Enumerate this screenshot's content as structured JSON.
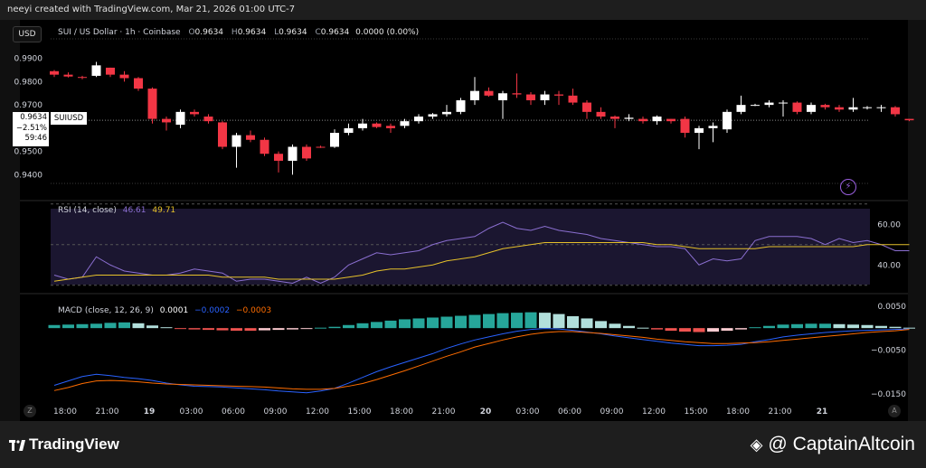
{
  "header": {
    "attribution": "neeyi created with TradingView.com, Mar 21, 2026 01:00 UTC-7",
    "currency": "USD",
    "title": "SUI / US Dollar · 1h · Coinbase",
    "ohlc": {
      "o_label": "O",
      "o": "0.9634",
      "h_label": "H",
      "h": "0.9634",
      "l_label": "L",
      "l": "0.9634",
      "c_label": "C",
      "c": "0.9634",
      "chg": "0.0000 (0.00%)"
    }
  },
  "price_label": {
    "price": "0.9634",
    "change": "−2.51%",
    "countdown": "59:46",
    "symbol": "SUIUSD"
  },
  "rsi_legend": {
    "name": "RSI (14, close)",
    "rsi": "46.61",
    "ma": "49.71"
  },
  "macd_legend": {
    "name": "MACD (close, 12, 26, 9)",
    "hist": "0.0001",
    "macd": "−0.0002",
    "signal": "−0.0003"
  },
  "corner": {
    "left": "Z",
    "right": "A"
  },
  "footer": {
    "tradingview": "TradingView",
    "captain": "CaptainAltcoin"
  },
  "colors": {
    "up": "#ffffff",
    "down": "#f23645",
    "rsi": "#8b6fd1",
    "rsi_ma": "#e6c12a",
    "macd": "#2962ff",
    "signal": "#ff6d00",
    "hist_up": "#26a69a",
    "hist_up_light": "#b2dfdb",
    "hist_down": "#ef5350",
    "hist_down_light": "#ffcdd2"
  },
  "chart_data": [
    {
      "type": "candlestick",
      "title": "SUI / US Dollar · 1h · Coinbase",
      "y_ticks": [
        0.99,
        0.98,
        0.97,
        0.95,
        0.94
      ],
      "y_tick_labels": [
        "0.9900",
        "0.9800",
        "0.9700",
        "0.9500",
        "0.9400"
      ],
      "ylim": [
        0.9355,
        0.998
      ],
      "x_ticks": [
        "18:00",
        "21:00",
        "19",
        "03:00",
        "06:00",
        "09:00",
        "12:00",
        "15:00",
        "18:00",
        "21:00",
        "20",
        "03:00",
        "06:00",
        "09:00",
        "12:00",
        "15:00",
        "18:00",
        "21:00",
        "21"
      ],
      "last_price": 0.9634,
      "candles": [
        {
          "o": 0.9845,
          "h": 0.985,
          "l": 0.982,
          "c": 0.983
        },
        {
          "o": 0.983,
          "h": 0.984,
          "l": 0.9818,
          "c": 0.9822
        },
        {
          "o": 0.982,
          "h": 0.9825,
          "l": 0.981,
          "c": 0.9818
        },
        {
          "o": 0.9825,
          "h": 0.9885,
          "l": 0.982,
          "c": 0.987
        },
        {
          "o": 0.986,
          "h": 0.986,
          "l": 0.982,
          "c": 0.983
        },
        {
          "o": 0.983,
          "h": 0.9845,
          "l": 0.98,
          "c": 0.9815
        },
        {
          "o": 0.9815,
          "h": 0.982,
          "l": 0.976,
          "c": 0.977
        },
        {
          "o": 0.977,
          "h": 0.9775,
          "l": 0.962,
          "c": 0.964
        },
        {
          "o": 0.964,
          "h": 0.965,
          "l": 0.959,
          "c": 0.9625
        },
        {
          "o": 0.9615,
          "h": 0.968,
          "l": 0.96,
          "c": 0.967
        },
        {
          "o": 0.967,
          "h": 0.968,
          "l": 0.965,
          "c": 0.966
        },
        {
          "o": 0.965,
          "h": 0.966,
          "l": 0.962,
          "c": 0.963
        },
        {
          "o": 0.9625,
          "h": 0.963,
          "l": 0.951,
          "c": 0.952
        },
        {
          "o": 0.952,
          "h": 0.958,
          "l": 0.943,
          "c": 0.957
        },
        {
          "o": 0.957,
          "h": 0.959,
          "l": 0.954,
          "c": 0.955
        },
        {
          "o": 0.955,
          "h": 0.956,
          "l": 0.948,
          "c": 0.949
        },
        {
          "o": 0.949,
          "h": 0.95,
          "l": 0.941,
          "c": 0.946
        },
        {
          "o": 0.946,
          "h": 0.953,
          "l": 0.94,
          "c": 0.952
        },
        {
          "o": 0.952,
          "h": 0.953,
          "l": 0.946,
          "c": 0.947
        },
        {
          "o": 0.952,
          "h": 0.9525,
          "l": 0.9515,
          "c": 0.9518
        },
        {
          "o": 0.952,
          "h": 0.9595,
          "l": 0.9515,
          "c": 0.958
        },
        {
          "o": 0.958,
          "h": 0.962,
          "l": 0.957,
          "c": 0.96
        },
        {
          "o": 0.96,
          "h": 0.964,
          "l": 0.959,
          "c": 0.962
        },
        {
          "o": 0.962,
          "h": 0.9625,
          "l": 0.96,
          "c": 0.9605
        },
        {
          "o": 0.961,
          "h": 0.962,
          "l": 0.958,
          "c": 0.96
        },
        {
          "o": 0.961,
          "h": 0.964,
          "l": 0.96,
          "c": 0.963
        },
        {
          "o": 0.963,
          "h": 0.966,
          "l": 0.962,
          "c": 0.965
        },
        {
          "o": 0.965,
          "h": 0.9665,
          "l": 0.964,
          "c": 0.966
        },
        {
          "o": 0.966,
          "h": 0.97,
          "l": 0.965,
          "c": 0.967
        },
        {
          "o": 0.967,
          "h": 0.973,
          "l": 0.966,
          "c": 0.972
        },
        {
          "o": 0.972,
          "h": 0.982,
          "l": 0.97,
          "c": 0.976
        },
        {
          "o": 0.976,
          "h": 0.9775,
          "l": 0.9735,
          "c": 0.974
        },
        {
          "o": 0.972,
          "h": 0.976,
          "l": 0.964,
          "c": 0.975
        },
        {
          "o": 0.975,
          "h": 0.9835,
          "l": 0.973,
          "c": 0.9745
        },
        {
          "o": 0.9745,
          "h": 0.9755,
          "l": 0.97,
          "c": 0.972
        },
        {
          "o": 0.972,
          "h": 0.976,
          "l": 0.97,
          "c": 0.9745
        },
        {
          "o": 0.9745,
          "h": 0.976,
          "l": 0.97,
          "c": 0.974
        },
        {
          "o": 0.974,
          "h": 0.977,
          "l": 0.97,
          "c": 0.971
        },
        {
          "o": 0.971,
          "h": 0.972,
          "l": 0.964,
          "c": 0.967
        },
        {
          "o": 0.967,
          "h": 0.969,
          "l": 0.964,
          "c": 0.965
        },
        {
          "o": 0.965,
          "h": 0.9655,
          "l": 0.96,
          "c": 0.964
        },
        {
          "o": 0.964,
          "h": 0.966,
          "l": 0.963,
          "c": 0.9645
        },
        {
          "o": 0.964,
          "h": 0.965,
          "l": 0.962,
          "c": 0.963
        },
        {
          "o": 0.963,
          "h": 0.9655,
          "l": 0.9615,
          "c": 0.965
        },
        {
          "o": 0.964,
          "h": 0.964,
          "l": 0.962,
          "c": 0.963
        },
        {
          "o": 0.964,
          "h": 0.965,
          "l": 0.956,
          "c": 0.958
        },
        {
          "o": 0.958,
          "h": 0.961,
          "l": 0.951,
          "c": 0.96
        },
        {
          "o": 0.96,
          "h": 0.9625,
          "l": 0.954,
          "c": 0.961
        },
        {
          "o": 0.9595,
          "h": 0.968,
          "l": 0.958,
          "c": 0.967
        },
        {
          "o": 0.967,
          "h": 0.974,
          "l": 0.966,
          "c": 0.97
        },
        {
          "o": 0.97,
          "h": 0.9705,
          "l": 0.9695,
          "c": 0.97
        },
        {
          "o": 0.97,
          "h": 0.972,
          "l": 0.969,
          "c": 0.971
        },
        {
          "o": 0.971,
          "h": 0.972,
          "l": 0.965,
          "c": 0.971
        },
        {
          "o": 0.971,
          "h": 0.9715,
          "l": 0.966,
          "c": 0.967
        },
        {
          "o": 0.967,
          "h": 0.971,
          "l": 0.966,
          "c": 0.97
        },
        {
          "o": 0.97,
          "h": 0.9705,
          "l": 0.968,
          "c": 0.969
        },
        {
          "o": 0.969,
          "h": 0.97,
          "l": 0.967,
          "c": 0.968
        },
        {
          "o": 0.968,
          "h": 0.973,
          "l": 0.967,
          "c": 0.969
        },
        {
          "o": 0.969,
          "h": 0.9695,
          "l": 0.968,
          "c": 0.969
        },
        {
          "o": 0.969,
          "h": 0.97,
          "l": 0.967,
          "c": 0.969
        },
        {
          "o": 0.969,
          "h": 0.9695,
          "l": 0.965,
          "c": 0.966
        },
        {
          "o": 0.964,
          "h": 0.964,
          "l": 0.963,
          "c": 0.9634
        }
      ]
    },
    {
      "type": "line",
      "title": "RSI (14, close)",
      "y_ticks": [
        60,
        40
      ],
      "y_tick_labels": [
        "60.00",
        "40.00"
      ],
      "ylim": [
        29,
        69
      ],
      "bands": [
        70,
        50,
        30
      ],
      "series": [
        {
          "name": "RSI",
          "values": [
            35,
            33,
            34,
            44,
            40,
            37,
            36,
            35,
            35,
            36,
            38,
            37,
            36,
            32,
            33,
            33,
            32,
            31,
            34,
            31,
            34,
            40,
            43,
            46,
            45,
            46,
            47,
            50,
            52,
            53,
            54,
            58,
            61,
            58,
            57,
            59,
            57,
            56,
            55,
            53,
            52,
            51,
            50,
            49,
            49,
            48,
            40,
            43,
            42,
            43,
            52,
            54,
            54,
            54,
            53,
            50,
            53,
            51,
            52,
            50,
            47,
            47
          ]
        },
        {
          "name": "RSI MA",
          "values": [
            32,
            33,
            34,
            35,
            35,
            35,
            35,
            35,
            35,
            35,
            35,
            35,
            34,
            34,
            34,
            34,
            33,
            33,
            33,
            33,
            33,
            34,
            35,
            37,
            38,
            38,
            39,
            40,
            42,
            43,
            44,
            46,
            48,
            49,
            50,
            51,
            51,
            51,
            51,
            51,
            51,
            51,
            51,
            50,
            50,
            49,
            48,
            48,
            48,
            48,
            48,
            49,
            49,
            49,
            49,
            49,
            49,
            49,
            50,
            50,
            50,
            50
          ]
        }
      ]
    },
    {
      "type": "bar",
      "title": "MACD (close, 12, 26, 9)",
      "y_ticks": [
        0.005,
        -0.005,
        -0.015
      ],
      "y_tick_labels": [
        "0.0050",
        "−0.0050",
        "−0.0150"
      ],
      "ylim": [
        -0.0166,
        0.0064
      ],
      "histogram": [
        0.0007,
        0.0008,
        0.0009,
        0.001,
        0.0012,
        0.0013,
        0.0011,
        0.0006,
        0.0002,
        -0.0001,
        -0.0003,
        -0.0004,
        -0.0005,
        -0.0006,
        -0.0006,
        -0.0005,
        -0.0004,
        -0.0003,
        -0.0001,
        0.0001,
        0.0003,
        0.0007,
        0.0011,
        0.0014,
        0.0017,
        0.002,
        0.0022,
        0.0024,
        0.0026,
        0.0028,
        0.003,
        0.0032,
        0.0034,
        0.0035,
        0.0036,
        0.0035,
        0.0032,
        0.0027,
        0.0022,
        0.0016,
        0.001,
        0.0005,
        0.0001,
        -0.0003,
        -0.0006,
        -0.0008,
        -0.0009,
        -0.0008,
        -0.0006,
        -0.0003,
        0.0002,
        0.0005,
        0.0008,
        0.0009,
        0.001,
        0.001,
        0.0009,
        0.0008,
        0.0007,
        0.0005,
        0.0003,
        0.0001
      ],
      "series": [
        {
          "name": "MACD",
          "values": [
            -0.013,
            -0.012,
            -0.011,
            -0.0105,
            -0.0108,
            -0.0112,
            -0.0115,
            -0.0119,
            -0.0125,
            -0.0129,
            -0.0132,
            -0.0133,
            -0.0134,
            -0.0136,
            -0.0138,
            -0.014,
            -0.0143,
            -0.0145,
            -0.0147,
            -0.0143,
            -0.0137,
            -0.0125,
            -0.0112,
            -0.0099,
            -0.0088,
            -0.0078,
            -0.0068,
            -0.0058,
            -0.0046,
            -0.0036,
            -0.0027,
            -0.002,
            -0.0013,
            -0.0007,
            -0.0003,
            -0.0001,
            -0.0002,
            -0.0005,
            -0.0009,
            -0.0013,
            -0.0018,
            -0.0022,
            -0.0026,
            -0.003,
            -0.0034,
            -0.0037,
            -0.004,
            -0.004,
            -0.0039,
            -0.0037,
            -0.0031,
            -0.0026,
            -0.002,
            -0.0016,
            -0.0013,
            -0.001,
            -0.0008,
            -0.0006,
            -0.0005,
            -0.0004,
            -0.0003,
            -0.0002
          ]
        },
        {
          "name": "Signal",
          "values": [
            -0.0142,
            -0.0135,
            -0.0126,
            -0.012,
            -0.0119,
            -0.012,
            -0.0122,
            -0.0125,
            -0.0127,
            -0.0128,
            -0.0129,
            -0.013,
            -0.0131,
            -0.0132,
            -0.0133,
            -0.0134,
            -0.0136,
            -0.0138,
            -0.0139,
            -0.0139,
            -0.0137,
            -0.0132,
            -0.0126,
            -0.0117,
            -0.0107,
            -0.0097,
            -0.0086,
            -0.0075,
            -0.0064,
            -0.0054,
            -0.0043,
            -0.0035,
            -0.0027,
            -0.002,
            -0.0014,
            -0.001,
            -0.0008,
            -0.0008,
            -0.001,
            -0.0012,
            -0.0015,
            -0.0018,
            -0.0021,
            -0.0025,
            -0.0028,
            -0.0031,
            -0.0033,
            -0.0035,
            -0.0035,
            -0.0034,
            -0.0033,
            -0.0031,
            -0.0028,
            -0.0025,
            -0.0022,
            -0.0019,
            -0.0016,
            -0.0013,
            -0.001,
            -0.0008,
            -0.0006,
            -0.0003
          ]
        }
      ]
    }
  ]
}
